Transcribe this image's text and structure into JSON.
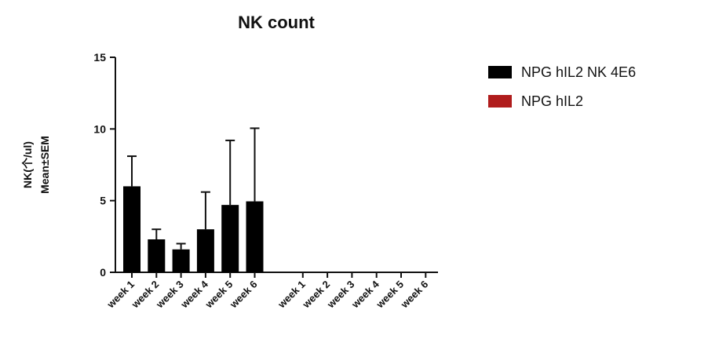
{
  "chart_data": {
    "type": "bar",
    "title": "NK count",
    "ylabel": "NK(个/ul)",
    "ylabel_sub": "Mean±SEM",
    "xlabel": "",
    "ylim": [
      0,
      15
    ],
    "yticks": [
      "0",
      "5",
      "10",
      "15"
    ],
    "grid": false,
    "legend_position": "right",
    "groups": [
      {
        "name": "NPG hIL2 NK 4E6",
        "color": "#000000",
        "categories": [
          "week 1",
          "week 2",
          "week 3",
          "week 4",
          "week 5",
          "week 6"
        ],
        "values": [
          6.0,
          2.3,
          1.6,
          3.0,
          4.7,
          4.95
        ],
        "errors": [
          2.1,
          0.7,
          0.4,
          2.6,
          4.5,
          5.1
        ]
      },
      {
        "name": "NPG hIL2",
        "color": "#b01c1c",
        "categories": [
          "week 1",
          "week 2",
          "week 3",
          "week 4",
          "week 5",
          "week 6"
        ],
        "values": [
          0,
          0,
          0,
          0,
          0,
          0
        ],
        "errors": [
          0,
          0,
          0,
          0,
          0,
          0
        ]
      }
    ]
  }
}
